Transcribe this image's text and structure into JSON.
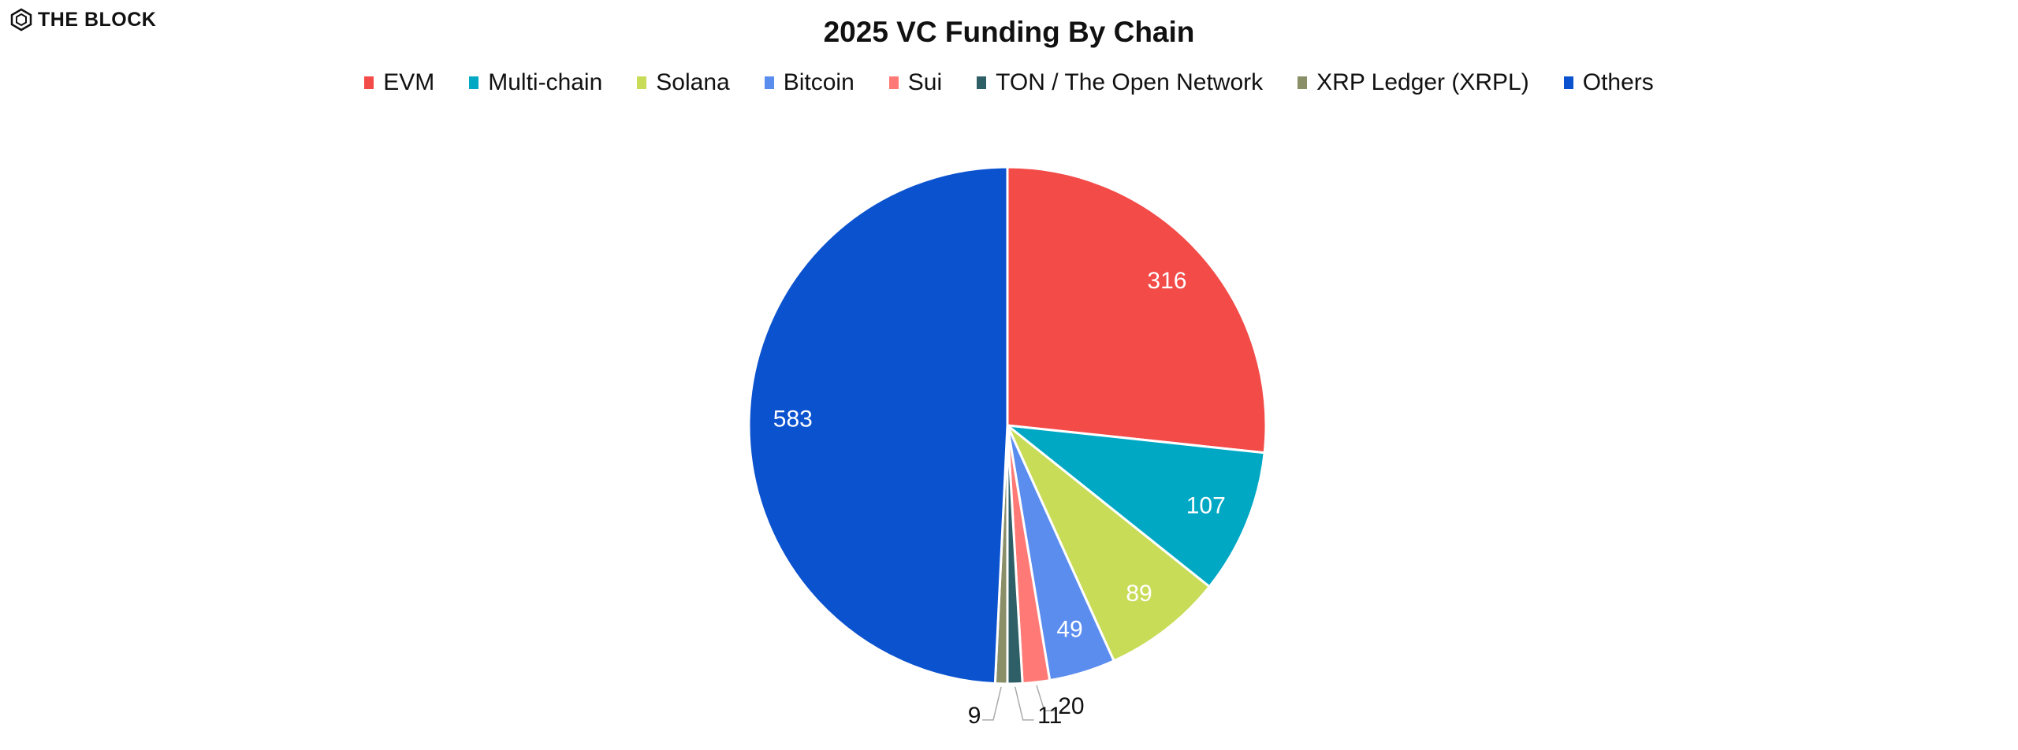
{
  "logo": {
    "text": "THE BLOCK"
  },
  "chart_data": {
    "type": "pie",
    "title": "2025 VC Funding By Chain",
    "legend_position": "top",
    "start": "12 o'clock, clockwise",
    "slices": [
      {
        "name": "EVM",
        "value": 316,
        "color": "#f24b48"
      },
      {
        "name": "Multi-chain",
        "value": 107,
        "color": "#00a8c4"
      },
      {
        "name": "Solana",
        "value": 89,
        "color": "#c8dc58"
      },
      {
        "name": "Bitcoin",
        "value": 49,
        "color": "#5b8def"
      },
      {
        "name": "Sui",
        "value": 20,
        "color": "#ff7a76"
      },
      {
        "name": "TON / The Open Network",
        "value": 11,
        "color": "#2f5f66"
      },
      {
        "name": "XRP Ledger (XRPL)",
        "value": 9,
        "color": "#8a8f68"
      },
      {
        "name": "Others",
        "value": 583,
        "color": "#0b52cf"
      }
    ]
  }
}
